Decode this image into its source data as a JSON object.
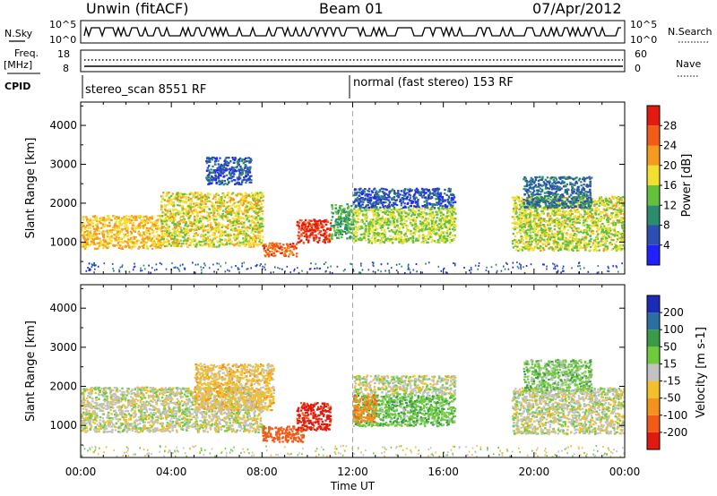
{
  "header": {
    "station": "Unwin (fitACF)",
    "beam": "Beam 01",
    "date": "07/Apr/2012"
  },
  "status_panel": {
    "nsky_label": "N.Sky",
    "nsky_ticks": [
      "10^5",
      "10^0"
    ],
    "nsearch_label": "N.Search",
    "nsearch_ticks": [
      "10^5",
      "10^0"
    ],
    "freq_label": "Freq.",
    "freq_unit": "[MHz]",
    "freq_ticks": [
      "18",
      "8"
    ],
    "nave_label": "Nave",
    "nave_ticks": [
      "60",
      "0"
    ],
    "cpid_label": "CPID",
    "cpid_modes": [
      {
        "label": "stereo_scan 8551 RF",
        "start": "00:00"
      },
      {
        "label": "normal (fast stereo) 153 RF",
        "start": "12:00"
      }
    ]
  },
  "chart_data": [
    {
      "type": "heatmap",
      "name": "power",
      "ylabel": "Slant Range [km]",
      "yticks": [
        1000,
        2000,
        3000,
        4000
      ],
      "ylim": [
        180,
        4600
      ],
      "x_start_hours": 0,
      "x_end_hours": 24,
      "colorbar": {
        "label": "Power [dB]",
        "ticks": [
          "4",
          "8",
          "12",
          "16",
          "20",
          "24",
          "28"
        ],
        "bands": [
          {
            "from": 0,
            "to": 4,
            "color": "#1f22ff"
          },
          {
            "from": 4,
            "to": 8,
            "color": "#2d4fb4"
          },
          {
            "from": 8,
            "to": 12,
            "color": "#2b8c6e"
          },
          {
            "from": 12,
            "to": 16,
            "color": "#63c13c"
          },
          {
            "from": 16,
            "to": 20,
            "color": "#f2e030"
          },
          {
            "from": 20,
            "to": 24,
            "color": "#f59a20"
          },
          {
            "from": 24,
            "to": 28,
            "color": "#f25b18"
          },
          {
            "from": 28,
            "to": 32,
            "color": "#e21a10"
          }
        ]
      },
      "blobs": [
        {
          "t0": 0.0,
          "t1": 3.5,
          "r0": 850,
          "r1": 1700,
          "level": 20
        },
        {
          "t0": 3.5,
          "t1": 8.0,
          "r0": 900,
          "r1": 2300,
          "level": 18
        },
        {
          "t0": 8.0,
          "t1": 9.5,
          "r0": 650,
          "r1": 1000,
          "level": 26
        },
        {
          "t0": 9.5,
          "t1": 11.0,
          "r0": 1000,
          "r1": 1600,
          "level": 29
        },
        {
          "t0": 11.0,
          "t1": 12.0,
          "r0": 1100,
          "r1": 2000,
          "level": 12
        },
        {
          "t0": 12.0,
          "t1": 16.5,
          "r0": 1000,
          "r1": 1900,
          "level": 16
        },
        {
          "t0": 12.0,
          "t1": 16.5,
          "r0": 1900,
          "r1": 2400,
          "level": 6
        },
        {
          "t0": 5.5,
          "t1": 7.5,
          "r0": 2500,
          "r1": 3200,
          "level": 6
        },
        {
          "t0": 19.0,
          "t1": 24.0,
          "r0": 800,
          "r1": 2200,
          "level": 17
        },
        {
          "t0": 19.5,
          "t1": 22.5,
          "r0": 1900,
          "r1": 2700,
          "level": 8
        }
      ]
    },
    {
      "type": "heatmap",
      "name": "velocity",
      "ylabel": "Slant Range [km]",
      "yticks": [
        1000,
        2000,
        3000,
        4000
      ],
      "ylim": [
        180,
        4600
      ],
      "x_start_hours": 0,
      "x_end_hours": 24,
      "xticks": [
        "00:00",
        "04:00",
        "08:00",
        "12:00",
        "16:00",
        "20:00",
        "00:00"
      ],
      "xlabel": "Time UT",
      "colorbar": {
        "label": "Velocity [m s-1]",
        "ticks": [
          "-200",
          "-100",
          "-50",
          "-15",
          "15",
          "50",
          "100",
          "200"
        ],
        "bands": [
          {
            "from": -250,
            "to": -200,
            "color": "#e01a10"
          },
          {
            "from": -200,
            "to": -100,
            "color": "#f25a18"
          },
          {
            "from": -100,
            "to": -50,
            "color": "#f5921e"
          },
          {
            "from": -50,
            "to": -15,
            "color": "#f2c02a"
          },
          {
            "from": -15,
            "to": 15,
            "color": "#c2c2c2"
          },
          {
            "from": 15,
            "to": 50,
            "color": "#6ecb3c"
          },
          {
            "from": 50,
            "to": 100,
            "color": "#3a9a4a"
          },
          {
            "from": 100,
            "to": 200,
            "color": "#2b6fa0"
          },
          {
            "from": 200,
            "to": 250,
            "color": "#1b2bb8"
          }
        ]
      },
      "blobs": [
        {
          "t0": 0.0,
          "t1": 8.0,
          "r0": 850,
          "r1": 2000,
          "level": 0
        },
        {
          "t0": 5.0,
          "t1": 8.5,
          "r0": 1400,
          "r1": 2600,
          "level": -30
        },
        {
          "t0": 8.0,
          "t1": 9.8,
          "r0": 600,
          "r1": 1000,
          "level": -150
        },
        {
          "t0": 9.5,
          "t1": 11.0,
          "r0": 900,
          "r1": 1600,
          "level": -220
        },
        {
          "t0": 12.0,
          "t1": 16.5,
          "r0": 1000,
          "r1": 1800,
          "level": 40
        },
        {
          "t0": 12.0,
          "t1": 16.5,
          "r0": 1800,
          "r1": 2300,
          "level": 0
        },
        {
          "t0": 12.0,
          "t1": 13.0,
          "r0": 1100,
          "r1": 1800,
          "level": -80
        },
        {
          "t0": 19.0,
          "t1": 24.0,
          "r0": 800,
          "r1": 2000,
          "level": 0
        },
        {
          "t0": 19.5,
          "t1": 22.5,
          "r0": 1900,
          "r1": 2700,
          "level": 30
        }
      ]
    }
  ]
}
